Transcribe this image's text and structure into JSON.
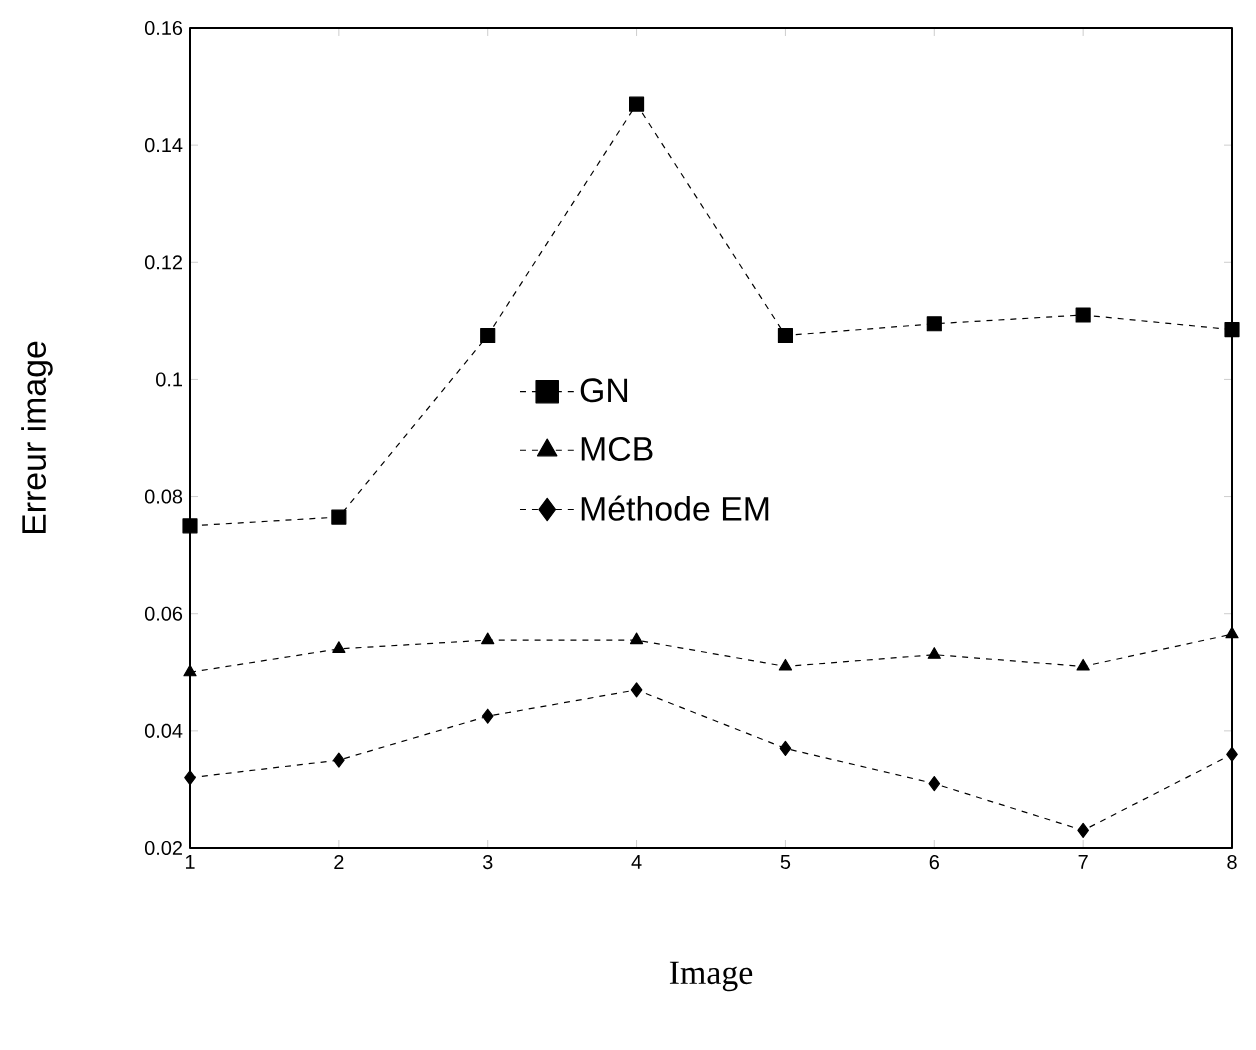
{
  "chart_data": {
    "type": "line",
    "xlabel": "Image",
    "ylabel": "Erreur image",
    "x": [
      1,
      2,
      3,
      4,
      5,
      6,
      7,
      8
    ],
    "series": [
      {
        "name": "GN",
        "color": "#000000",
        "marker": "square",
        "values": [
          0.075,
          0.0765,
          0.1075,
          0.147,
          0.1075,
          0.1095,
          0.111,
          0.1085
        ]
      },
      {
        "name": "MCB",
        "color": "#000000",
        "marker": "triangle",
        "values": [
          0.05,
          0.054,
          0.0555,
          0.0555,
          0.051,
          0.053,
          0.051,
          0.0565
        ]
      },
      {
        "name": "Méthode EM",
        "color": "#000000",
        "marker": "diamond",
        "values": [
          0.032,
          0.035,
          0.0425,
          0.047,
          0.037,
          0.031,
          0.023,
          0.036
        ]
      }
    ],
    "xlim": [
      1,
      8
    ],
    "xticks": [
      1,
      2,
      3,
      4,
      5,
      6,
      7,
      8
    ],
    "ylim": [
      0.02,
      0.16
    ],
    "yticks": [
      0.02,
      0.04,
      0.06,
      0.08,
      0.1,
      0.12,
      0.14,
      0.16
    ],
    "legend": "center",
    "grid": false,
    "line_style": "dashed"
  }
}
